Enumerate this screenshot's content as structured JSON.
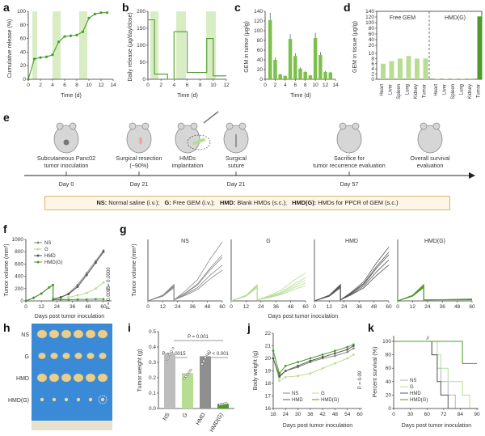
{
  "colors": {
    "green_dark": "#4c9a2a",
    "green_mid": "#7cc04b",
    "green_light": "#b7dd92",
    "band": "#d9edc4",
    "gray": "#8a8a8a",
    "gray_dark": "#555555",
    "tumor_photo_bg": "#3a8ad8"
  },
  "panels": {
    "a": {
      "letter": "a",
      "ylabel": "Cumulative release (%)",
      "xlabel": "Time (d)",
      "yticks": [
        "0",
        "20",
        "40",
        "60",
        "80",
        "100"
      ],
      "xticks": [
        "0",
        "2",
        "4",
        "6",
        "8",
        "10",
        "12",
        "14"
      ]
    },
    "b": {
      "letter": "b",
      "ylabel": "Daily release (μg/day/dose)",
      "xlabel": "Time (d)",
      "yticks": [
        "0",
        "50",
        "100",
        "150",
        "200"
      ],
      "xticks": [
        "0",
        "2",
        "4",
        "6",
        "8",
        "10",
        "12"
      ]
    },
    "c": {
      "letter": "c",
      "ylabel": "GEM in tumor (μg/g)",
      "xlabel": "Time (d)",
      "yticks": [
        "0",
        "20",
        "40",
        "60",
        "80",
        "100",
        "120",
        "140"
      ],
      "xticks": [
        "0",
        "2",
        "4",
        "6",
        "8",
        "10",
        "12",
        "14"
      ]
    },
    "d": {
      "letter": "d",
      "ylabel": "GEM in tissue (μg/g)",
      "yticks": [
        "0",
        "2",
        "4",
        "6",
        "8",
        "10",
        "20",
        "40",
        "60",
        "80",
        "100",
        "120",
        "140"
      ],
      "group1": "Free GEM",
      "group2": "HMD(G)",
      "categories": [
        "Heart",
        "Liver",
        "Spleen",
        "Lung",
        "Kidney",
        "Tumor"
      ]
    },
    "e": {
      "letter": "e",
      "steps": [
        {
          "label1": "Subcutaneous Panc02",
          "label2": "tumor inoculation",
          "day": "Day 0"
        },
        {
          "label1": "Surgical resection",
          "label2": "(~90%)",
          "day": "Day 21"
        },
        {
          "label1": "HMDs",
          "label2": "implantation",
          "day": ""
        },
        {
          "label1": "Surgical",
          "label2": "suture",
          "day": "Day 21"
        },
        {
          "label1": "Sacrifice for",
          "label2": "tumor recurrence evaluation",
          "day": "Day 57"
        },
        {
          "label1": "Overall survival",
          "label2": "evaluation",
          "day": ""
        }
      ],
      "legend": [
        {
          "abbr": "NS:",
          "text": "Normal saline (i.v.)"
        },
        {
          "abbr": "G:",
          "text": "Free GEM (i.v.)"
        },
        {
          "abbr": "HMD:",
          "text": "Blank HMDs (s.c.)"
        },
        {
          "abbr": "HMD(G):",
          "text": "HMDs for PPCR of GEM (s.c.)"
        }
      ]
    },
    "f": {
      "letter": "f",
      "ylabel": "Tumor volume (mm³)",
      "xlabel": "Days post tumor inoculation",
      "yticks": [
        "0",
        "200",
        "400",
        "600",
        "800",
        "1000"
      ],
      "xticks": [
        "0",
        "12",
        "24",
        "36",
        "48",
        "60"
      ],
      "legend": [
        "NS",
        "G",
        "HMD",
        "HMD(G)"
      ],
      "p1": "P = 0.0000",
      "p2": "P = 0.0015"
    },
    "g": {
      "letter": "g",
      "ylabel": "Tumor volume (mm³)",
      "xlabel": "Days post tumor inoculation",
      "titles": [
        "NS",
        "G",
        "HMD",
        "HMD(G)"
      ],
      "xticks": [
        "0",
        "12",
        "24",
        "36",
        "48",
        "60"
      ]
    },
    "h": {
      "letter": "h",
      "rows": [
        "NS",
        "G",
        "HMD",
        "HMD(G)"
      ]
    },
    "i": {
      "letter": "i",
      "ylabel": "Tumor weight (g)",
      "yticks": [
        "0.0",
        "0.1",
        "0.2",
        "0.3",
        "0.4",
        "0.5"
      ],
      "categories": [
        "NS",
        "G",
        "HMD",
        "HMD(G)"
      ],
      "p_top": "P = 0.001",
      "p_left": "P = 0.0015",
      "p_right": "P < 0.001"
    },
    "j": {
      "letter": "j",
      "ylabel": "Body weight (g)",
      "xlabel": "Days post tumor inoculation",
      "yticks": [
        "16",
        "17",
        "18",
        "19",
        "20",
        "21",
        "22"
      ],
      "xticks": [
        "18",
        "24",
        "30",
        "36",
        "42",
        "48",
        "54",
        "60"
      ],
      "legend": [
        "NS",
        "G",
        "HMD",
        "HMD(G)"
      ],
      "p": "P = 0.09"
    },
    "k": {
      "letter": "k",
      "ylabel": "Percent survival (%)",
      "xlabel": "Days post tumor inoculation",
      "yticks": [
        "0",
        "20",
        "40",
        "60",
        "80",
        "100"
      ],
      "xticks": [
        "0",
        "30",
        "60",
        "72",
        "84",
        "90"
      ],
      "legend": [
        "NS",
        "G",
        "HMD",
        "HMD(G)"
      ]
    }
  },
  "chart_data": [
    {
      "type": "line",
      "panel": "a",
      "x": [
        0,
        1,
        2,
        3,
        4,
        5,
        6,
        7,
        8,
        9,
        10,
        11,
        12,
        13
      ],
      "values": [
        0,
        30,
        32,
        33,
        36,
        55,
        63,
        64,
        65,
        70,
        90,
        96,
        98,
        98
      ],
      "xlim": [
        0,
        14
      ],
      "ylim": [
        0,
        100
      ]
    },
    {
      "type": "line",
      "panel": "b",
      "x": [
        0,
        1,
        1,
        3,
        3,
        4,
        4,
        6,
        6,
        9,
        9,
        10,
        10,
        12
      ],
      "values": [
        175,
        175,
        15,
        15,
        0,
        0,
        140,
        140,
        20,
        20,
        120,
        120,
        10,
        10
      ],
      "xlim": [
        0,
        12
      ],
      "ylim": [
        0,
        200
      ]
    },
    {
      "type": "bar",
      "panel": "c",
      "categories": [
        "1",
        "2",
        "3",
        "4",
        "5",
        "6",
        "7",
        "8",
        "9",
        "10",
        "11",
        "12",
        "13"
      ],
      "values": [
        122,
        40,
        10,
        7,
        83,
        48,
        22,
        15,
        8,
        85,
        50,
        15,
        14
      ],
      "ylim": [
        0,
        140
      ]
    },
    {
      "type": "bar",
      "panel": "d",
      "categories": [
        "Heart",
        "Liver",
        "Spleen",
        "Lung",
        "Kidney",
        "Tumor",
        "Heart",
        "Liver",
        "Spleen",
        "Lung",
        "Kidney",
        "Tumor"
      ],
      "values": [
        6,
        7,
        8,
        9,
        8,
        8,
        0.2,
        0.2,
        0.2,
        0.2,
        0.3,
        122
      ]
    },
    {
      "type": "line",
      "panel": "f",
      "x": [
        0,
        6,
        12,
        18,
        21,
        21,
        27,
        33,
        40,
        47,
        54,
        60
      ],
      "series": [
        {
          "name": "NS",
          "values": [
            0,
            50,
            120,
            220,
            260,
            30,
            60,
            120,
            260,
            450,
            650,
            820
          ]
        },
        {
          "name": "G",
          "values": [
            0,
            50,
            120,
            220,
            260,
            30,
            40,
            60,
            90,
            130,
            200,
            300
          ]
        },
        {
          "name": "HMD",
          "values": [
            0,
            50,
            120,
            220,
            260,
            30,
            60,
            110,
            230,
            420,
            620,
            800
          ]
        },
        {
          "name": "HMD(G)",
          "values": [
            0,
            50,
            120,
            220,
            260,
            20,
            20,
            20,
            25,
            25,
            30,
            30
          ]
        }
      ],
      "ylim": [
        0,
        1000
      ]
    },
    {
      "type": "bar",
      "panel": "i",
      "categories": [
        "NS",
        "G",
        "HMD",
        "HMD(G)"
      ],
      "values": [
        0.36,
        0.23,
        0.34,
        0.03
      ],
      "ylim": [
        0,
        0.5
      ]
    },
    {
      "type": "line",
      "panel": "j",
      "x": [
        18,
        21,
        24,
        30,
        36,
        42,
        48,
        54,
        57
      ],
      "series": [
        {
          "name": "NS",
          "values": [
            20,
            18.5,
            19,
            19.3,
            19.7,
            20,
            20.2,
            20.5,
            20.8
          ]
        },
        {
          "name": "G",
          "values": [
            20,
            18.2,
            18.5,
            18.6,
            18.8,
            19.2,
            19.6,
            20,
            20.3
          ]
        },
        {
          "name": "HMD",
          "values": [
            20,
            18.6,
            19,
            19.4,
            19.8,
            20.1,
            20.4,
            20.7,
            21
          ]
        },
        {
          "name": "HMD(G)",
          "values": [
            20.6,
            18.8,
            19.4,
            19.7,
            20,
            20.3,
            20.6,
            20.9,
            21.1
          ]
        }
      ],
      "ylim": [
        16,
        22
      ]
    },
    {
      "type": "line",
      "panel": "k",
      "x": [
        0,
        60,
        65,
        68,
        70,
        74,
        78,
        82,
        86,
        90
      ],
      "series": [
        {
          "name": "NS",
          "values": [
            100,
            100,
            80,
            60,
            40,
            20,
            0,
            0,
            0,
            0
          ]
        },
        {
          "name": "G",
          "values": [
            100,
            100,
            100,
            80,
            60,
            40,
            40,
            20,
            0,
            0
          ]
        },
        {
          "name": "HMD",
          "values": [
            100,
            100,
            80,
            40,
            20,
            0,
            0,
            0,
            0,
            0
          ]
        },
        {
          "name": "HMD(G)",
          "values": [
            100,
            100,
            100,
            100,
            100,
            100,
            100,
            67,
            67,
            67
          ]
        }
      ],
      "ylim": [
        0,
        100
      ]
    }
  ]
}
